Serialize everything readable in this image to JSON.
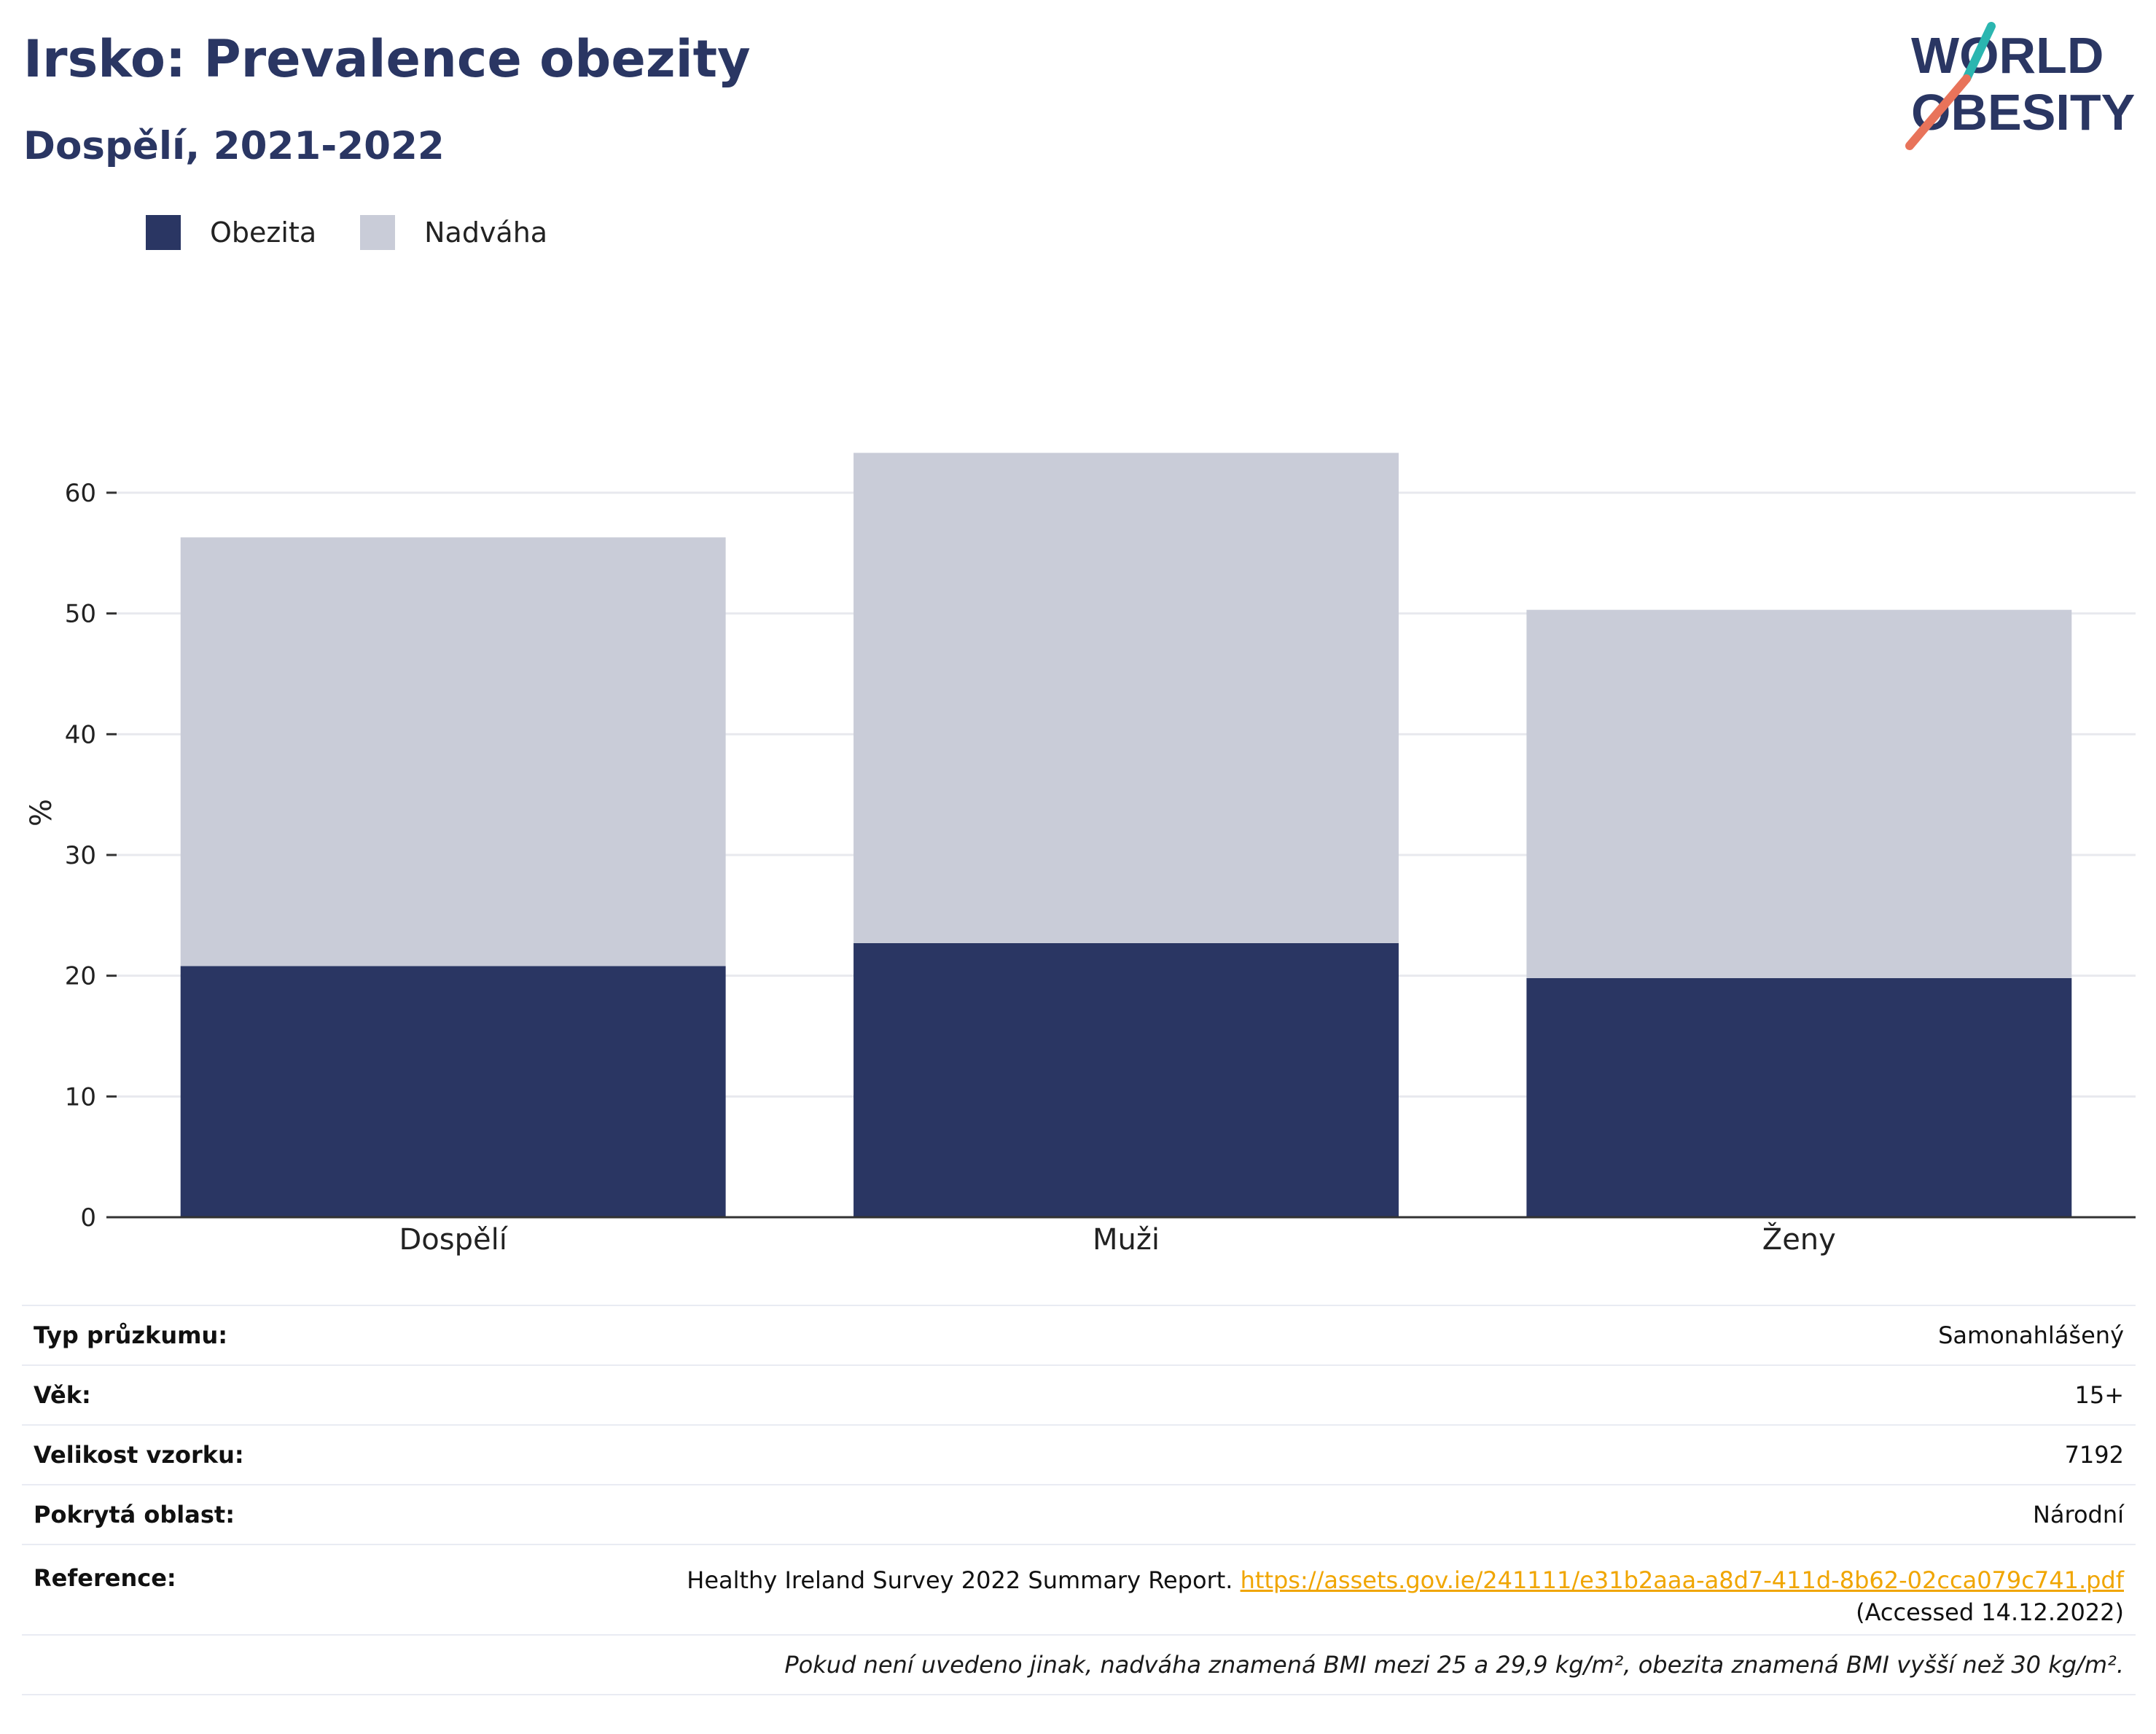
{
  "header": {
    "title": "Irsko: Prevalence obezity",
    "subtitle": "Dospělí, 2021-2022"
  },
  "logo": {
    "line1": "WORLD",
    "line2": "OBESITY",
    "colors": {
      "text": "#2a3663",
      "teal": "#2bb6b0",
      "coral": "#e8735a"
    }
  },
  "legend": {
    "items": [
      {
        "label": "Obezita",
        "color": "#2a3663"
      },
      {
        "label": "Nadváha",
        "color": "#c9ccd8"
      }
    ]
  },
  "chart_data": {
    "type": "bar",
    "stacked": true,
    "categories": [
      "Dospělí",
      "Muži",
      "Ženy"
    ],
    "series": [
      {
        "name": "Obezita",
        "color": "#2a3663",
        "values": [
          20.8,
          22.7,
          19.8
        ]
      },
      {
        "name": "Nadváha",
        "color": "#c9ccd8",
        "values": [
          35.5,
          40.6,
          30.5
        ]
      }
    ],
    "ylabel": "%",
    "ylim": [
      0,
      67
    ],
    "yticks": [
      0,
      10,
      20,
      30,
      40,
      50,
      60
    ],
    "grid": true,
    "legend_position": "top-left"
  },
  "info": {
    "survey_type_label": "Typ průzkumu:",
    "survey_type_value": "Samonahlášený",
    "age_label": "Věk:",
    "age_value": "15+",
    "sample_label": "Velikost vzorku:",
    "sample_value": "7192",
    "area_label": "Pokrytá oblast:",
    "area_value": "Národní",
    "reference_label": "Reference:",
    "reference_text": "Healthy Ireland Survey 2022 Summary Report.",
    "reference_url": "https://assets.gov.ie/241111/e31b2aaa-a8d7-411d-8b62-02cca079c741.pdf",
    "reference_accessed": "(Accessed 14.12.2022)",
    "note": "Pokud není uvedeno jinak, nadváha znamená BMI mezi 25 a 29,9 kg/m², obezita znamená BMI vyšší než 30 kg/m²."
  }
}
